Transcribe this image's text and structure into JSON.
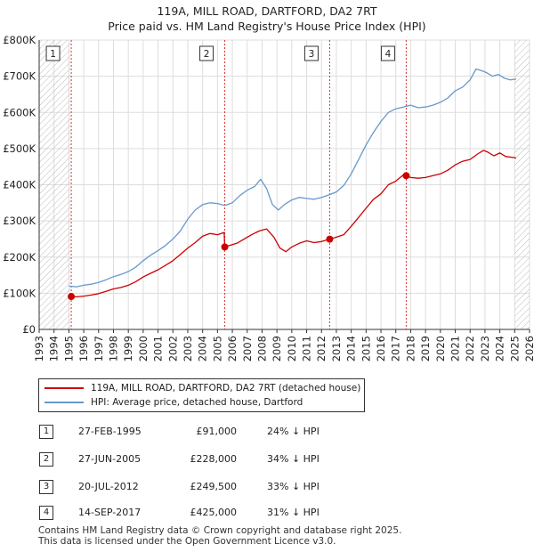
{
  "title_line1": "119A, MILL ROAD, DARTFORD, DA2 7RT",
  "title_line2": "Price paid vs. HM Land Registry's House Price Index (HPI)",
  "colors": {
    "price": "#cc0000",
    "hpi": "#6699cc",
    "marker_line_price": "#cc0000",
    "grid": "#dddddd",
    "hatch": "#bbbbbb"
  },
  "legend": {
    "price_label": "119A, MILL ROAD, DARTFORD, DA2 7RT (detached house)",
    "hpi_label": "HPI: Average price, detached house, Dartford"
  },
  "transactions": [
    {
      "num": "1",
      "date": "27-FEB-1995",
      "price": "£91,000",
      "hpi": "24% ↓ HPI"
    },
    {
      "num": "2",
      "date": "27-JUN-2005",
      "price": "£228,000",
      "hpi": "34% ↓ HPI"
    },
    {
      "num": "3",
      "date": "20-JUL-2012",
      "price": "£249,500",
      "hpi": "33% ↓ HPI"
    },
    {
      "num": "4",
      "date": "14-SEP-2017",
      "price": "£425,000",
      "hpi": "31% ↓ HPI"
    }
  ],
  "footer": {
    "line1": "Contains HM Land Registry data © Crown copyright and database right 2025.",
    "line2": "This data is licensed under the Open Government Licence v3.0."
  },
  "chart_data": {
    "type": "line",
    "ylim": [
      0,
      800000
    ],
    "xlim": [
      1993,
      2026
    ],
    "yticks": [
      0,
      100000,
      200000,
      300000,
      400000,
      500000,
      600000,
      700000,
      800000
    ],
    "ytick_labels": [
      "£0",
      "£100K",
      "£200K",
      "£300K",
      "£400K",
      "£500K",
      "£600K",
      "£700K",
      "£800K"
    ],
    "xticks": [
      "1993",
      "1994",
      "1995",
      "1996",
      "1997",
      "1998",
      "1999",
      "2000",
      "2001",
      "2002",
      "2003",
      "2004",
      "2005",
      "2006",
      "2007",
      "2008",
      "2009",
      "2010",
      "2011",
      "2012",
      "2013",
      "2014",
      "2015",
      "2016",
      "2017",
      "2018",
      "2019",
      "2020",
      "2021",
      "2022",
      "2023",
      "2024",
      "2025",
      "2026"
    ],
    "hatched_regions": [
      [
        1993,
        1995.1
      ],
      [
        2025.0,
        2026
      ]
    ],
    "sales": [
      {
        "label": "1",
        "x": 1995.16,
        "y": 91000
      },
      {
        "label": "2",
        "x": 2005.49,
        "y": 228000
      },
      {
        "label": "3",
        "x": 2012.55,
        "y": 249500
      },
      {
        "label": "4",
        "x": 2017.7,
        "y": 425000
      }
    ],
    "series": [
      {
        "name": "119A, MILL ROAD, DARTFORD, DA2 7RT (detached house)",
        "x": [
          1995.16,
          1995.5,
          1996,
          1996.5,
          1997,
          1997.5,
          1998,
          1998.5,
          1999,
          1999.5,
          2000,
          2000.5,
          2001,
          2001.5,
          2002,
          2002.5,
          2003,
          2003.5,
          2004,
          2004.5,
          2005,
          2005.45,
          2005.49,
          2005.8,
          2006.3,
          2006.8,
          2007.3,
          2007.8,
          2008.3,
          2008.8,
          2009.2,
          2009.6,
          2010,
          2010.5,
          2011,
          2011.5,
          2012,
          2012.55,
          2013,
          2013.5,
          2014,
          2014.5,
          2015,
          2015.5,
          2016,
          2016.5,
          2017,
          2017.6,
          2017.7,
          2018,
          2018.5,
          2019,
          2019.5,
          2020,
          2020.5,
          2021,
          2021.5,
          2022,
          2022.5,
          2022.9,
          2023.2,
          2023.6,
          2024,
          2024.4,
          2024.8,
          2025.1
        ],
        "values": [
          91000,
          90000,
          92000,
          95000,
          99000,
          105000,
          112000,
          116000,
          122000,
          132000,
          145000,
          155000,
          165000,
          177000,
          190000,
          207000,
          225000,
          240000,
          258000,
          265000,
          262000,
          268000,
          228000,
          232000,
          238000,
          250000,
          262000,
          272000,
          278000,
          255000,
          225000,
          215000,
          228000,
          238000,
          245000,
          240000,
          243000,
          249500,
          255000,
          262000,
          285000,
          310000,
          335000,
          360000,
          375000,
          400000,
          410000,
          430000,
          425000,
          420000,
          418000,
          420000,
          425000,
          430000,
          440000,
          455000,
          465000,
          470000,
          485000,
          495000,
          490000,
          480000,
          488000,
          478000,
          476000,
          474000
        ]
      },
      {
        "name": "HPI: Average price, detached house, Dartford",
        "x": [
          1995,
          1995.5,
          1996,
          1996.5,
          1997,
          1997.5,
          1998,
          1998.5,
          1999,
          1999.5,
          2000,
          2000.5,
          2001,
          2001.5,
          2002,
          2002.5,
          2003,
          2003.5,
          2004,
          2004.5,
          2005,
          2005.5,
          2006,
          2006.5,
          2007,
          2007.5,
          2007.9,
          2008.3,
          2008.7,
          2009.1,
          2009.5,
          2010,
          2010.5,
          2011,
          2011.5,
          2012,
          2012.5,
          2013,
          2013.5,
          2014,
          2014.5,
          2015,
          2015.5,
          2016,
          2016.5,
          2017,
          2017.5,
          2018,
          2018.5,
          2019,
          2019.5,
          2020,
          2020.5,
          2021,
          2021.5,
          2022,
          2022.4,
          2022.8,
          2023.1,
          2023.5,
          2023.9,
          2024.3,
          2024.7,
          2025.1
        ],
        "values": [
          120000,
          118000,
          122000,
          125000,
          130000,
          137000,
          146000,
          152000,
          160000,
          172000,
          190000,
          205000,
          218000,
          232000,
          250000,
          272000,
          305000,
          330000,
          345000,
          350000,
          348000,
          343000,
          350000,
          370000,
          385000,
          395000,
          415000,
          390000,
          345000,
          330000,
          345000,
          358000,
          365000,
          362000,
          360000,
          365000,
          372000,
          380000,
          398000,
          430000,
          470000,
          510000,
          545000,
          575000,
          600000,
          610000,
          615000,
          620000,
          613000,
          615000,
          620000,
          628000,
          640000,
          660000,
          670000,
          690000,
          720000,
          715000,
          710000,
          700000,
          705000,
          695000,
          690000,
          692000
        ]
      }
    ]
  }
}
